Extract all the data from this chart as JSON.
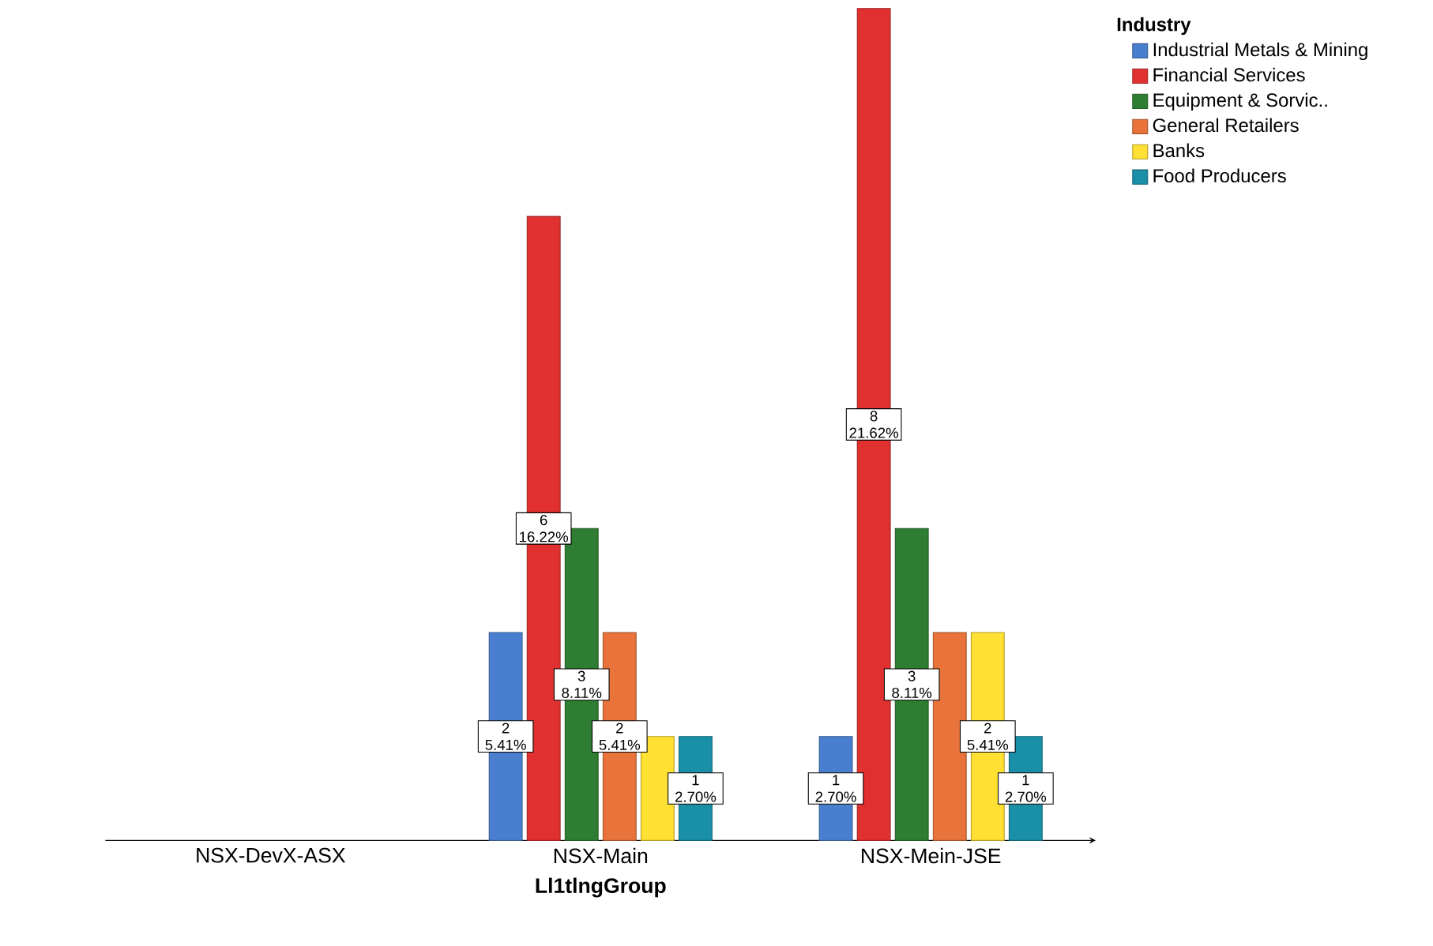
{
  "chart_data": {
    "type": "bar",
    "ylim": [
      0,
      8
    ],
    "xlabel": "Ll1tlngGroup",
    "legend_title": "Industry",
    "legend": "top right",
    "categories": [
      "NSX-DevX-ASX",
      "NSX-Main",
      "NSX-Mein-JSE"
    ],
    "series": [
      {
        "name": "Industrial Metals & Mining",
        "color": "#4a7fd0",
        "values": [
          null,
          2,
          1
        ],
        "value_labels": [
          null,
          "2 5.41%",
          "1 2.70%"
        ]
      },
      {
        "name": "Financial Services",
        "color": "#e03030",
        "values": [
          null,
          6,
          8
        ],
        "value_labels": [
          null,
          "6 16.22%",
          "8 21.62%"
        ]
      },
      {
        "name": "Equipment & Sorvic..",
        "color": "#2e7d32",
        "values": [
          null,
          3,
          3
        ],
        "value_labels": [
          null,
          "3 8.11%",
          "3 8.11%"
        ]
      },
      {
        "name": "General Retailers",
        "color": "#e8743b",
        "values": [
          null,
          2,
          2
        ],
        "value_labels": [
          null,
          "2 5.41%",
          null
        ]
      },
      {
        "name": "Banks",
        "color": "#ffe033",
        "values": [
          null,
          1,
          2
        ],
        "value_labels": [
          null,
          null,
          "2 5.41%"
        ]
      },
      {
        "name": "Food Producers",
        "color": "#1a8fa8",
        "values": [
          null,
          1,
          1
        ],
        "value_labels": [
          null,
          "1 2.70%",
          "1 2.70%"
        ]
      }
    ]
  }
}
